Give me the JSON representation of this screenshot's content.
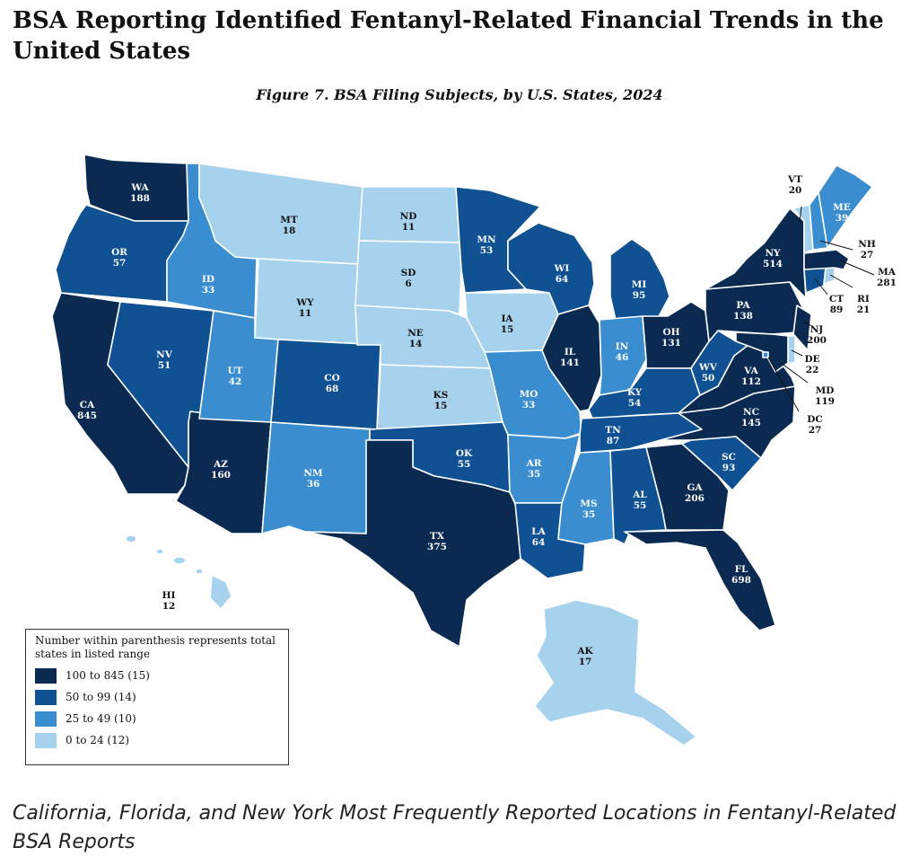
{
  "header": {
    "title": "BSA Reporting Identified Fentanyl-Related Financial Trends in the United States",
    "figure_caption": "Figure 7. BSA Filing Subjects, by U.S. States, 2024"
  },
  "colors": {
    "100 to 845": "#0b2a52",
    "50 to 99": "#0f5193",
    "25 to 49": "#3a8ed0",
    "0 to 24": "#a7d2ee"
  },
  "legend": {
    "note": "Number within parenthesis represents total states in listed range",
    "items": [
      {
        "label": "100 to 845 (15)",
        "color": "#0b2a52"
      },
      {
        "label": "50 to 99 (14)",
        "color": "#0f5193"
      },
      {
        "label": "25 to 49 (10)",
        "color": "#3a8ed0"
      },
      {
        "label": "0 to 24 (12)",
        "color": "#a7d2ee"
      }
    ]
  },
  "states": {
    "WA": 188,
    "OR": 57,
    "CA": 845,
    "ID": 33,
    "NV": 51,
    "AZ": 160,
    "MT": 18,
    "WY": 11,
    "UT": 42,
    "CO": 68,
    "NM": 36,
    "ND": 11,
    "SD": 6,
    "NE": 14,
    "KS": 15,
    "OK": 55,
    "TX": 375,
    "MN": 53,
    "IA": 15,
    "MO": 33,
    "AR": 35,
    "LA": 64,
    "WI": 64,
    "IL": 141,
    "MI": 95,
    "IN": 46,
    "OH": 131,
    "KY": 54,
    "TN": 87,
    "MS": 35,
    "AL": 55,
    "GA": 206,
    "FL": 698,
    "SC": 93,
    "NC": 145,
    "VA": 112,
    "WV": 50,
    "PA": 138,
    "NY": 514,
    "NJ": 200,
    "DE": 22,
    "MD": 119,
    "DC": 27,
    "CT": 89,
    "RI": 21,
    "MA": 281,
    "VT": 20,
    "NH": 27,
    "ME": 39,
    "AK": 17,
    "HI": 12
  },
  "footer": {
    "subtitle": "California, Florida, and New York Most Frequently Reported Locations in Fentanyl-Related BSA Reports"
  }
}
